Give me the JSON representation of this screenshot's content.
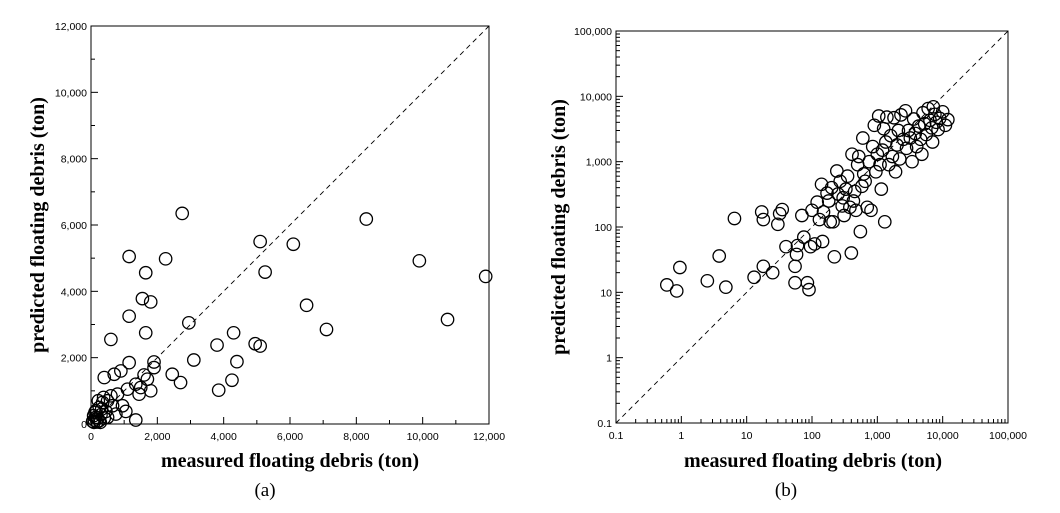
{
  "chart_data": [
    {
      "type": "scatter",
      "panel_label": "(a)",
      "xlabel": "measured floating debris (ton)",
      "ylabel": "predicted floating debris (ton)",
      "xlim": [
        0,
        12000
      ],
      "ylim": [
        0,
        12000
      ],
      "scale": "linear",
      "xticks": [
        "0",
        "2,000",
        "4,000",
        "6,000",
        "8,000",
        "10,000",
        "12,000"
      ],
      "yticks": [
        "0",
        "2,000",
        "4,000",
        "6,000",
        "8,000",
        "10,000",
        "12,000"
      ],
      "reference_line": "y = x (dashed)",
      "marker": "open circle",
      "points": [
        [
          2750,
          6350
        ],
        [
          8300,
          6180
        ],
        [
          1150,
          5050
        ],
        [
          2250,
          4980
        ],
        [
          9900,
          4920
        ],
        [
          1650,
          4560
        ],
        [
          5250,
          4580
        ],
        [
          11900,
          4450
        ],
        [
          5100,
          5500
        ],
        [
          6100,
          5420
        ],
        [
          1550,
          3780
        ],
        [
          1800,
          3680
        ],
        [
          6500,
          3580
        ],
        [
          1150,
          3250
        ],
        [
          10750,
          3150
        ],
        [
          2950,
          3050
        ],
        [
          1650,
          2750
        ],
        [
          4300,
          2750
        ],
        [
          7100,
          2850
        ],
        [
          600,
          2550
        ],
        [
          4950,
          2420
        ],
        [
          5100,
          2350
        ],
        [
          3800,
          2380
        ],
        [
          3100,
          1930
        ],
        [
          4400,
          1880
        ],
        [
          1150,
          1850
        ],
        [
          1900,
          1870
        ],
        [
          2450,
          1500
        ],
        [
          1600,
          1480
        ],
        [
          1900,
          1700
        ],
        [
          2700,
          1250
        ],
        [
          4250,
          1320
        ],
        [
          3850,
          1020
        ],
        [
          1800,
          1000
        ],
        [
          900,
          1600
        ],
        [
          700,
          1500
        ],
        [
          400,
          1400
        ],
        [
          1350,
          1200
        ],
        [
          1450,
          900
        ],
        [
          1500,
          1100
        ],
        [
          1100,
          1050
        ],
        [
          800,
          900
        ],
        [
          500,
          700
        ],
        [
          950,
          550
        ],
        [
          1350,
          120
        ],
        [
          1050,
          380
        ],
        [
          750,
          300
        ],
        [
          600,
          850
        ],
        [
          350,
          650
        ],
        [
          250,
          500
        ],
        [
          450,
          380
        ],
        [
          150,
          400
        ],
        [
          300,
          280
        ],
        [
          200,
          180
        ],
        [
          100,
          120
        ],
        [
          50,
          80
        ],
        [
          180,
          60
        ],
        [
          80,
          250
        ],
        [
          250,
          100
        ],
        [
          400,
          180
        ],
        [
          120,
          350
        ],
        [
          320,
          450
        ],
        [
          500,
          200
        ],
        [
          650,
          550
        ],
        [
          220,
          700
        ],
        [
          380,
          800
        ],
        [
          150,
          200
        ],
        [
          90,
          50
        ],
        [
          280,
          50
        ],
        [
          1700,
          1350
        ]
      ]
    },
    {
      "type": "scatter",
      "panel_label": "(b)",
      "xlabel": "measured floating debris (ton)",
      "ylabel": "predicted floating debris (ton)",
      "xlim": [
        0.1,
        100000
      ],
      "ylim": [
        0.1,
        100000
      ],
      "scale": "log-log",
      "xticks": [
        "0.1",
        "1",
        "10",
        "100",
        "1,000",
        "10,000",
        "100,000"
      ],
      "yticks": [
        "0.1",
        "1",
        "10",
        "100",
        "1,000",
        "10,000",
        "100,000"
      ],
      "reference_line": "y = x (dashed)",
      "marker": "open circle",
      "points": [
        [
          0.6,
          13
        ],
        [
          0.85,
          10.5
        ],
        [
          0.95,
          24
        ],
        [
          2.5,
          15
        ],
        [
          3.8,
          36
        ],
        [
          4.8,
          12
        ],
        [
          6.5,
          135
        ],
        [
          13,
          17
        ],
        [
          17,
          170
        ],
        [
          18,
          130
        ],
        [
          18,
          25
        ],
        [
          25,
          20
        ],
        [
          30,
          110
        ],
        [
          32,
          160
        ],
        [
          35,
          185
        ],
        [
          40,
          50
        ],
        [
          55,
          14
        ],
        [
          55,
          25
        ],
        [
          58,
          38
        ],
        [
          60,
          52
        ],
        [
          70,
          150
        ],
        [
          75,
          70
        ],
        [
          85,
          14
        ],
        [
          90,
          11
        ],
        [
          95,
          50
        ],
        [
          100,
          180
        ],
        [
          110,
          55
        ],
        [
          120,
          240
        ],
        [
          130,
          130
        ],
        [
          140,
          450
        ],
        [
          145,
          60
        ],
        [
          150,
          170
        ],
        [
          170,
          330
        ],
        [
          180,
          250
        ],
        [
          190,
          120
        ],
        [
          200,
          400
        ],
        [
          210,
          120
        ],
        [
          220,
          35
        ],
        [
          240,
          720
        ],
        [
          250,
          320
        ],
        [
          270,
          500
        ],
        [
          290,
          210
        ],
        [
          300,
          280
        ],
        [
          310,
          150
        ],
        [
          330,
          380
        ],
        [
          350,
          600
        ],
        [
          380,
          200
        ],
        [
          400,
          40
        ],
        [
          410,
          1300
        ],
        [
          430,
          250
        ],
        [
          450,
          350
        ],
        [
          470,
          180
        ],
        [
          500,
          900
        ],
        [
          520,
          1200
        ],
        [
          550,
          85
        ],
        [
          580,
          420
        ],
        [
          600,
          2300
        ],
        [
          620,
          650
        ],
        [
          650,
          500
        ],
        [
          700,
          200
        ],
        [
          750,
          1000
        ],
        [
          800,
          180
        ],
        [
          850,
          1700
        ],
        [
          900,
          3600
        ],
        [
          950,
          700
        ],
        [
          1000,
          1300
        ],
        [
          1050,
          5000
        ],
        [
          1100,
          900
        ],
        [
          1150,
          380
        ],
        [
          1200,
          1500
        ],
        [
          1250,
          3200
        ],
        [
          1300,
          120
        ],
        [
          1350,
          2000
        ],
        [
          1400,
          4800
        ],
        [
          1500,
          900
        ],
        [
          1600,
          2500
        ],
        [
          1700,
          1200
        ],
        [
          1800,
          4700
        ],
        [
          1900,
          700
        ],
        [
          2000,
          1800
        ],
        [
          2100,
          3000
        ],
        [
          2200,
          1100
        ],
        [
          2300,
          5200
        ],
        [
          2500,
          2200
        ],
        [
          2700,
          6000
        ],
        [
          2800,
          1600
        ],
        [
          3000,
          3000
        ],
        [
          3200,
          2300
        ],
        [
          3400,
          1000
        ],
        [
          3600,
          4500
        ],
        [
          3800,
          2700
        ],
        [
          4000,
          1700
        ],
        [
          4300,
          3500
        ],
        [
          4600,
          2200
        ],
        [
          5000,
          5600
        ],
        [
          5300,
          3800
        ],
        [
          5600,
          2600
        ],
        [
          6000,
          6500
        ],
        [
          6400,
          4300
        ],
        [
          6800,
          3300
        ],
        [
          7200,
          6900
        ],
        [
          7600,
          5300
        ],
        [
          8000,
          4000
        ],
        [
          8500,
          3100
        ],
        [
          9000,
          4600
        ],
        [
          10000,
          5800
        ],
        [
          11000,
          3600
        ],
        [
          12000,
          4400
        ],
        [
          7000,
          2000
        ],
        [
          4800,
          1300
        ]
      ]
    }
  ]
}
